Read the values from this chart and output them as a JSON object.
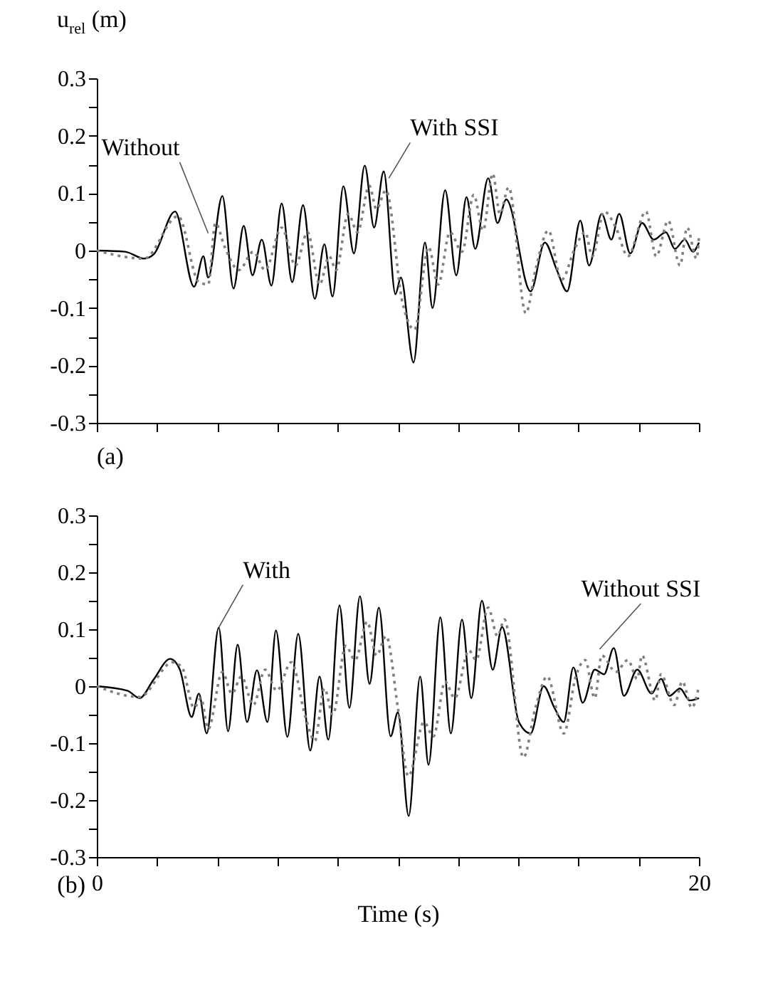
{
  "chart_data": [
    {
      "type": "line",
      "ylabel": "u$_{rel}$ (m)",
      "xlim": [
        0,
        20
      ],
      "ylim": [
        -0.3,
        0.3
      ],
      "xticks": [
        0,
        2,
        4,
        6,
        8,
        10,
        12,
        14,
        16,
        18,
        20
      ],
      "yticks": [
        -0.3,
        {
          "value": -0.25,
          "label": null
        },
        -0.2,
        {
          "value": -0.15,
          "label": null
        },
        -0.1,
        {
          "value": -0.05,
          "label": null
        },
        0,
        {
          "value": 0.05,
          "label": null
        },
        0.1,
        {
          "value": 0.15,
          "label": null
        },
        0.2,
        {
          "value": 0.25,
          "label": null
        },
        0.3
      ],
      "tick_labels": "y",
      "series": [
        {
          "color": "#000000",
          "line_style": "solid",
          "x": [
            0,
            0.94,
            1.57,
            1.9,
            2.6,
            3.23,
            3.54,
            3.7,
            4.17,
            4.54,
            4.88,
            5.17,
            5.48,
            5.8,
            6.14,
            6.49,
            6.85,
            7.24,
            7.56,
            7.83,
            8.19,
            8.54,
            8.9,
            9.21,
            9.53,
            9.92,
            10.1,
            10.52,
            10.9,
            11.15,
            11.57,
            11.94,
            12.28,
            12.57,
            13.0,
            13.31,
            13.6,
            14.41,
            14.88,
            15.28,
            15.62,
            16.06,
            16.35,
            16.77,
            17.09,
            17.35,
            17.72,
            18.11,
            18.5,
            18.9,
            19.2,
            19.53,
            19.8,
            20
          ],
          "values": [
            0,
            -0.002,
            -0.014,
            -0.006,
            0.068,
            -0.063,
            -0.01,
            -0.047,
            0.095,
            -0.066,
            0.043,
            -0.043,
            0.019,
            -0.061,
            0.082,
            -0.055,
            0.079,
            -0.084,
            0.011,
            -0.08,
            0.112,
            -0.005,
            0.148,
            0.04,
            0.138,
            -0.076,
            -0.047,
            -0.195,
            0.014,
            -0.1,
            0.105,
            -0.043,
            0.093,
            0.003,
            0.126,
            0.048,
            0.089,
            -0.071,
            0.014,
            -0.034,
            -0.071,
            0.052,
            -0.026,
            0.064,
            0.019,
            0.064,
            -0.005,
            0.048,
            0.019,
            0.032,
            0.003,
            0.019,
            -0.002,
            0.014
          ]
        },
        {
          "color": "#808080",
          "line_style": "dotted",
          "x": [
            0,
            1.57,
            2.7,
            3.39,
            3.7,
            3.94,
            4.25,
            4.72,
            5.2,
            5.59,
            6.14,
            6.6,
            7.0,
            7.4,
            7.72,
            7.95,
            8.35,
            8.66,
            9.05,
            9.29,
            9.6,
            10.16,
            10.55,
            11.02,
            11.34,
            11.73,
            12.13,
            12.52,
            12.83,
            13.15,
            13.39,
            13.68,
            14.25,
            14.57,
            15.0,
            15.43,
            15.9,
            16.22,
            16.46,
            16.85,
            17.24,
            17.64,
            18.24,
            18.58,
            18.98,
            19.37,
            19.61,
            19.92,
            20
          ],
          "values": [
            0,
            -0.014,
            0.06,
            -0.055,
            -0.059,
            0.048,
            0.006,
            -0.034,
            -0.002,
            -0.034,
            0.04,
            -0.026,
            0.032,
            -0.059,
            -0.01,
            -0.034,
            0.064,
            0.032,
            0.113,
            0.072,
            0.105,
            -0.092,
            -0.138,
            0.006,
            -0.059,
            0.032,
            -0.002,
            0.097,
            0.035,
            0.134,
            0.064,
            0.11,
            -0.109,
            -0.034,
            0.035,
            -0.051,
            0.006,
            0.032,
            -0.01,
            0.068,
            0.04,
            -0.01,
            0.068,
            -0.01,
            0.052,
            -0.026,
            0.04,
            -0.014,
            0.023
          ]
        }
      ],
      "annotations": [
        {
          "text": "Without",
          "x": 3.7,
          "y": 0.03
        },
        {
          "text": "With SSI",
          "x": 9.7,
          "y": 0.126
        },
        "(a)"
      ]
    },
    {
      "type": "line",
      "xlabel": "Time (s)",
      "xlim": [
        0,
        20
      ],
      "ylim": [
        -0.3,
        0.3
      ],
      "xticks": [
        0,
        {
          "value": 2,
          "label": null
        },
        {
          "value": 4,
          "label": null
        },
        {
          "value": 6,
          "label": null
        },
        {
          "value": 8,
          "label": null
        },
        {
          "value": 10,
          "label": null
        },
        {
          "value": 12,
          "label": null
        },
        {
          "value": 14,
          "label": null
        },
        {
          "value": 16,
          "label": null
        },
        {
          "value": 18,
          "label": null
        },
        20
      ],
      "yticks": [
        -0.3,
        {
          "value": -0.25,
          "label": null
        },
        -0.2,
        {
          "value": -0.15,
          "label": null
        },
        -0.1,
        {
          "value": -0.05,
          "label": null
        },
        0,
        {
          "value": 0.05,
          "label": null
        },
        0.1,
        {
          "value": 0.15,
          "label": null
        },
        0.2,
        {
          "value": 0.25,
          "label": null
        },
        0.3
      ],
      "series": [
        {
          "color": "#000000",
          "line_style": "solid",
          "x": [
            0,
            1.02,
            1.42,
            1.89,
            2.44,
            2.76,
            3.15,
            3.39,
            3.65,
            4.05,
            4.36,
            4.68,
            4.99,
            5.32,
            5.67,
            5.95,
            6.33,
            6.69,
            7.09,
            7.4,
            7.69,
            8.06,
            8.39,
            8.74,
            9.06,
            9.37,
            9.76,
            10.0,
            10.36,
            10.74,
            11.02,
            11.41,
            11.76,
            12.13,
            12.44,
            12.79,
            13.15,
            13.46,
            14.02,
            14.41,
            14.84,
            15.2,
            15.51,
            15.83,
            16.14,
            16.54,
            16.85,
            17.17,
            17.51,
            17.95,
            18.43,
            18.74,
            19.02,
            19.37,
            19.69,
            20
          ],
          "values": [
            0,
            -0.008,
            -0.021,
            0.012,
            0.048,
            0.029,
            -0.054,
            -0.013,
            -0.083,
            0.103,
            -0.079,
            0.073,
            -0.063,
            0.028,
            -0.063,
            0.098,
            -0.089,
            0.092,
            -0.113,
            0.017,
            -0.094,
            0.142,
            -0.038,
            0.158,
            0.004,
            0.138,
            -0.088,
            -0.046,
            -0.228,
            0.017,
            -0.138,
            0.121,
            -0.083,
            0.117,
            -0.021,
            0.15,
            0.029,
            0.104,
            -0.063,
            -0.083,
            0,
            -0.038,
            -0.063,
            0.033,
            -0.029,
            0.029,
            0.021,
            0.067,
            -0.017,
            0.029,
            -0.013,
            0.013,
            -0.017,
            -0.004,
            -0.025,
            -0.021
          ]
        },
        {
          "color": "#808080",
          "line_style": "dotted",
          "x": [
            0,
            1.42,
            2.52,
            2.83,
            3.23,
            3.46,
            3.7,
            4.17,
            4.49,
            4.8,
            5.2,
            5.59,
            5.98,
            6.46,
            6.93,
            7.24,
            7.56,
            7.84,
            8.27,
            8.58,
            8.98,
            9.29,
            9.61,
            10.0,
            10.35,
            10.87,
            11.18,
            11.57,
            11.89,
            12.36,
            12.6,
            13.0,
            13.31,
            13.54,
            14.17,
            14.57,
            14.96,
            15.51,
            15.91,
            16.22,
            16.54,
            16.77,
            17.24,
            17.64,
            17.95,
            18.11,
            18.55,
            18.74,
            19.18,
            19.45,
            19.76,
            20
          ],
          "values": [
            0,
            -0.019,
            0.042,
            0.033,
            -0.038,
            -0.021,
            -0.075,
            0.025,
            -0.013,
            0.017,
            -0.033,
            0.029,
            -0.008,
            0.042,
            -0.054,
            -0.096,
            -0.004,
            -0.05,
            0.071,
            0.046,
            0.113,
            0.054,
            0.088,
            -0.038,
            -0.158,
            -0.063,
            -0.088,
            0.008,
            -0.021,
            0.063,
            0.046,
            0.138,
            0.088,
            0.117,
            -0.125,
            -0.038,
            0.017,
            -0.083,
            0.017,
            0.046,
            -0.021,
            0.054,
            0.025,
            0.046,
            0.013,
            0.054,
            -0.025,
            0.021,
            -0.033,
            0.008,
            -0.038,
            0
          ]
        }
      ],
      "annotations": [
        {
          "text": "With",
          "x": 4.05,
          "y": 0.103
        },
        {
          "text": "Without SSI",
          "x": 16.7,
          "y": 0.065
        },
        "(b)"
      ]
    }
  ]
}
